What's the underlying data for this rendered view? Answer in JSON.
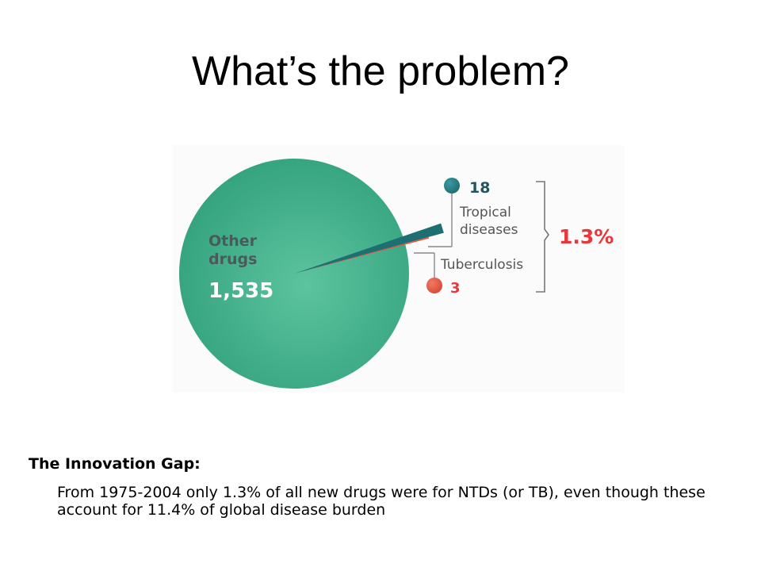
{
  "slide": {
    "title": "What’s the problem?",
    "gap_heading": "The Innovation Gap:",
    "gap_body": "From 1975-2004 only 1.3% of all new drugs were for NTDs (or TB), even though these account for 11.4% of global disease burden"
  },
  "chart_data": {
    "type": "pie",
    "title": "",
    "slices": [
      {
        "label_lines": [
          "Other",
          "drugs"
        ],
        "value": 1535,
        "value_label": "1,535",
        "color": "#3fae8a"
      },
      {
        "label_lines": [
          "Tropical",
          "diseases"
        ],
        "value": 18,
        "value_label": "18",
        "color": "#1e6f72"
      },
      {
        "label_lines": [
          "Tuberculosis"
        ],
        "value": 3,
        "value_label": "3",
        "color": "#e8533f"
      }
    ],
    "bracket_label": "1.3%",
    "colors": {
      "bracket_label": "#e8363a",
      "value_text_small": "#24545c",
      "label_text": "#555555",
      "other_label": "#4a5a5a",
      "other_value": "#ffffff"
    }
  }
}
